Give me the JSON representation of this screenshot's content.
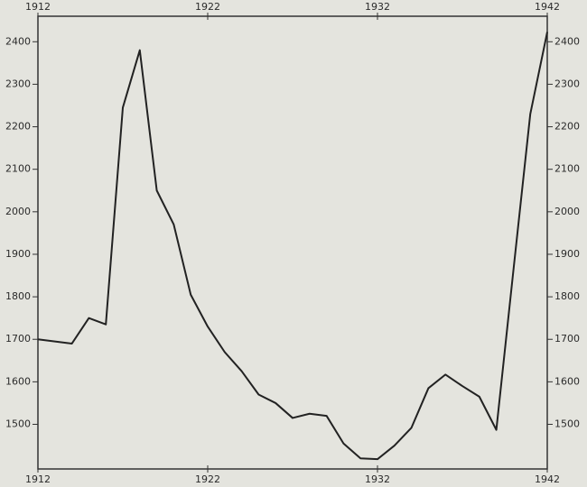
{
  "chart_data": {
    "type": "line",
    "x": [
      1912,
      1913,
      1914,
      1915,
      1916,
      1917,
      1918,
      1919,
      1920,
      1921,
      1922,
      1923,
      1924,
      1925,
      1926,
      1927,
      1928,
      1929,
      1930,
      1931,
      1932,
      1933,
      1934,
      1935,
      1936,
      1937,
      1938,
      1939,
      1940,
      1941,
      1942
    ],
    "series": [
      {
        "color": "#222222",
        "values": [
          1700,
          1695,
          1690,
          1750,
          1735,
          2245,
          2380,
          2050,
          1970,
          1805,
          1730,
          1670,
          1625,
          1570,
          1550,
          1515,
          1525,
          1520,
          1455,
          1420,
          1418,
          1450,
          1492,
          1585,
          1617,
          1590,
          1565,
          1487,
          1860,
          2230,
          2423
        ]
      }
    ],
    "xlim": [
      1912,
      1942
    ],
    "xticks": [
      1912,
      1922,
      1932,
      1942
    ],
    "ylim": [
      1395,
      2460
    ],
    "yticks": [
      1500,
      1600,
      1700,
      1800,
      1900,
      2000,
      2100,
      2200,
      2300,
      2400
    ]
  }
}
